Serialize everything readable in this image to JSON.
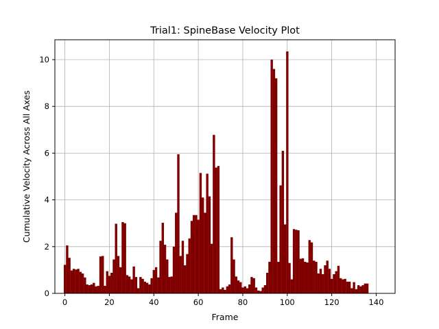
{
  "chart_data": {
    "type": "bar",
    "title": "Trial1: SpineBase Velocity Plot",
    "xlabel": "Frame",
    "ylabel": "Cumulative Velocity Across All Axes",
    "xlim": [
      -4.5,
      148.5
    ],
    "ylim": [
      0,
      10.85
    ],
    "xticks": [
      0,
      20,
      40,
      60,
      80,
      100,
      120,
      140
    ],
    "yticks": [
      0,
      2,
      4,
      6,
      8,
      10
    ],
    "grid": true,
    "bar_color": "#800000",
    "x_start": 0,
    "values": [
      1.22,
      2.05,
      1.52,
      0.98,
      1.05,
      1.02,
      1.05,
      0.92,
      0.85,
      0.68,
      0.38,
      0.35,
      0.38,
      0.45,
      0.3,
      0.32,
      1.58,
      1.6,
      0.32,
      0.95,
      0.75,
      0.88,
      1.45,
      2.98,
      1.6,
      1.12,
      3.05,
      3.0,
      0.78,
      0.72,
      0.6,
      1.15,
      0.7,
      0.22,
      0.7,
      0.62,
      0.5,
      0.45,
      0.38,
      0.65,
      1.0,
      1.12,
      0.68,
      2.25,
      3.02,
      2.08,
      1.45,
      0.7,
      0.72,
      2.0,
      3.45,
      5.95,
      1.6,
      2.25,
      1.2,
      1.68,
      2.35,
      3.1,
      3.35,
      3.35,
      3.15,
      5.15,
      4.1,
      3.45,
      5.12,
      4.15,
      2.12,
      6.78,
      5.38,
      5.45,
      0.18,
      0.25,
      0.15,
      0.3,
      0.38,
      2.4,
      1.45,
      0.72,
      0.55,
      0.48,
      0.25,
      0.3,
      0.22,
      0.38,
      0.7,
      0.65,
      0.25,
      0.12,
      0.1,
      0.25,
      0.35,
      0.88,
      1.35,
      10.0,
      9.6,
      9.2,
      1.35,
      4.62,
      6.1,
      2.95,
      10.35,
      1.3,
      0.6,
      2.75,
      2.72,
      2.7,
      1.48,
      1.5,
      1.35,
      1.32,
      2.28,
      2.18,
      1.4,
      1.35,
      0.85,
      1.05,
      0.82,
      1.2,
      1.4,
      1.05,
      0.62,
      0.82,
      0.95,
      1.18,
      0.65,
      0.6,
      0.62,
      0.5,
      0.5,
      0.22,
      0.48,
      0.18,
      0.35,
      0.3,
      0.35,
      0.42,
      0.42
    ]
  }
}
